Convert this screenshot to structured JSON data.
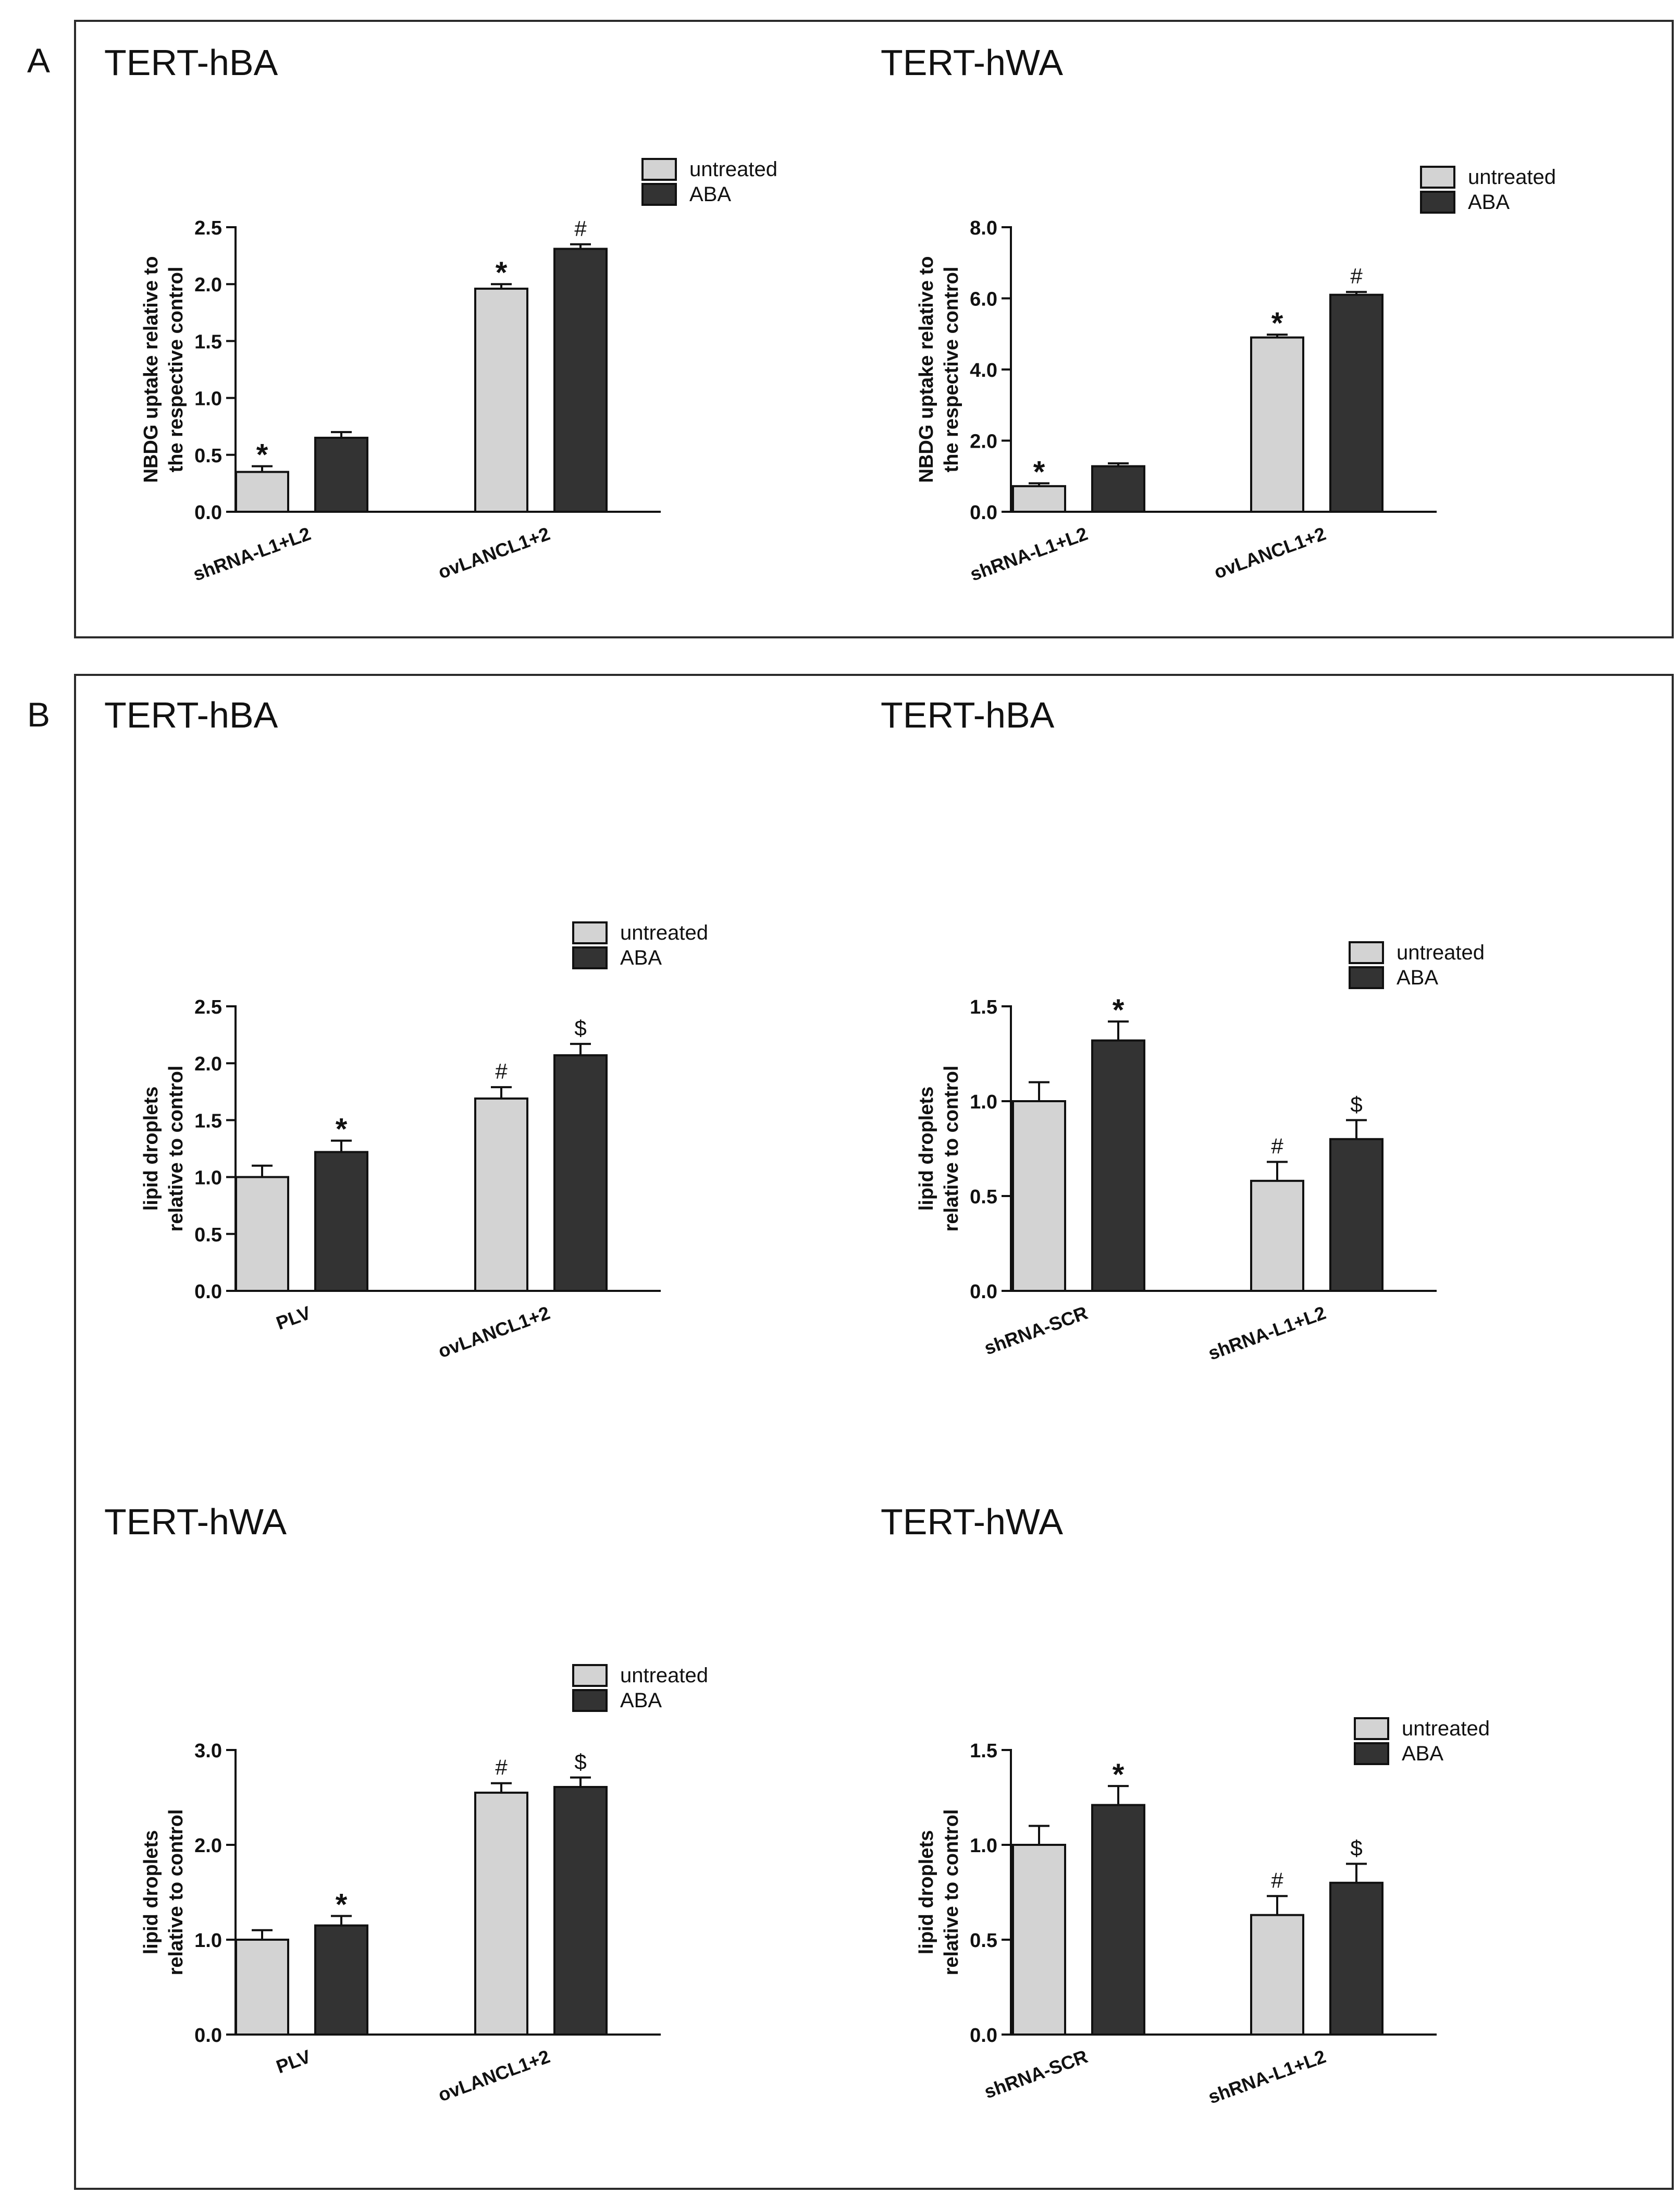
{
  "panels": [
    {
      "letter": "A"
    },
    {
      "letter": "B"
    }
  ],
  "colors": {
    "untreated": "#d3d3d3",
    "aba": "#333333",
    "stroke": "#111111",
    "frame": "#2b2b2b"
  },
  "chart_data": [
    {
      "type": "bar",
      "title": "TERT-hBA",
      "ylabel": [
        "NBDG uptake relative to",
        "the respective control"
      ],
      "xlabel": "",
      "ylim": [
        0,
        2.5
      ],
      "yticks": [
        "0.0",
        "0.5",
        "1.0",
        "1.5",
        "2.0",
        "2.5"
      ],
      "categories": [
        "shRNA-L1+L2",
        "ovLANCL1+2"
      ],
      "series": [
        {
          "name": "untreated",
          "values": [
            0.35,
            1.96
          ],
          "errors": [
            0.05,
            0.04
          ],
          "annotations": [
            "*",
            "*"
          ]
        },
        {
          "name": "ABA",
          "values": [
            0.65,
            2.31
          ],
          "errors": [
            0.05,
            0.04
          ],
          "annotations": [
            "",
            "#"
          ]
        }
      ]
    },
    {
      "type": "bar",
      "title": "TERT-hWA",
      "ylabel": [
        "NBDG uptake relative to",
        "the respective control"
      ],
      "xlabel": "",
      "ylim": [
        0,
        8
      ],
      "yticks": [
        "0.0",
        "2.0",
        "4.0",
        "6.0",
        "8.0"
      ],
      "categories": [
        "shRNA-L1+L2",
        "ovLANCL1+2"
      ],
      "series": [
        {
          "name": "untreated",
          "values": [
            0.72,
            4.9
          ],
          "errors": [
            0.08,
            0.08
          ],
          "annotations": [
            "*",
            "*"
          ]
        },
        {
          "name": "ABA",
          "values": [
            1.28,
            6.1
          ],
          "errors": [
            0.08,
            0.08
          ],
          "annotations": [
            "",
            "#"
          ]
        }
      ]
    },
    {
      "type": "bar",
      "title": "TERT-hBA",
      "ylabel": [
        "lipid droplets",
        "relative to control"
      ],
      "xlabel": "",
      "ylim": [
        0,
        2.5
      ],
      "yticks": [
        "0.0",
        "0.5",
        "1.0",
        "1.5",
        "2.0",
        "2.5"
      ],
      "categories": [
        "PLV",
        "ovLANCL1+2"
      ],
      "series": [
        {
          "name": "untreated",
          "values": [
            1.0,
            1.69
          ],
          "errors": [
            0.1,
            0.1
          ],
          "annotations": [
            "",
            "#"
          ]
        },
        {
          "name": "ABA",
          "values": [
            1.22,
            2.07
          ],
          "errors": [
            0.1,
            0.1
          ],
          "annotations": [
            "*",
            "$"
          ]
        }
      ]
    },
    {
      "type": "bar",
      "title": "TERT-hBA",
      "ylabel": [
        "lipid droplets",
        "relative to control"
      ],
      "xlabel": "",
      "ylim": [
        0,
        1.5
      ],
      "yticks": [
        "0.0",
        "0.5",
        "1.0",
        "1.5"
      ],
      "categories": [
        "shRNA-SCR",
        "shRNA-L1+L2"
      ],
      "series": [
        {
          "name": "untreated",
          "values": [
            1.0,
            0.58
          ],
          "errors": [
            0.1,
            0.1
          ],
          "annotations": [
            "",
            "#"
          ]
        },
        {
          "name": "ABA",
          "values": [
            1.32,
            0.8
          ],
          "errors": [
            0.1,
            0.1
          ],
          "annotations": [
            "*",
            "$"
          ]
        }
      ]
    },
    {
      "type": "bar",
      "title": "TERT-hWA",
      "ylabel": [
        "lipid droplets",
        "relative to control"
      ],
      "xlabel": "",
      "ylim": [
        0,
        3
      ],
      "yticks": [
        "0.0",
        "1.0",
        "2.0",
        "3.0"
      ],
      "categories": [
        "PLV",
        "ovLANCL1+2"
      ],
      "series": [
        {
          "name": "untreated",
          "values": [
            1.0,
            2.55
          ],
          "errors": [
            0.1,
            0.1
          ],
          "annotations": [
            "",
            "#"
          ]
        },
        {
          "name": "ABA",
          "values": [
            1.15,
            2.61
          ],
          "errors": [
            0.1,
            0.1
          ],
          "annotations": [
            "*",
            "$"
          ]
        }
      ]
    },
    {
      "type": "bar",
      "title": "TERT-hWA",
      "ylabel": [
        "lipid droplets",
        "relative to control"
      ],
      "xlabel": "",
      "ylim": [
        0,
        1.5
      ],
      "yticks": [
        "0.0",
        "0.5",
        "1.0",
        "1.5"
      ],
      "categories": [
        "shRNA-SCR",
        "shRNA-L1+L2"
      ],
      "series": [
        {
          "name": "untreated",
          "values": [
            1.0,
            0.63
          ],
          "errors": [
            0.1,
            0.1
          ],
          "annotations": [
            "",
            "#"
          ]
        },
        {
          "name": "ABA",
          "values": [
            1.21,
            0.8
          ],
          "errors": [
            0.1,
            0.1
          ],
          "annotations": [
            "*",
            "$"
          ]
        }
      ]
    }
  ]
}
